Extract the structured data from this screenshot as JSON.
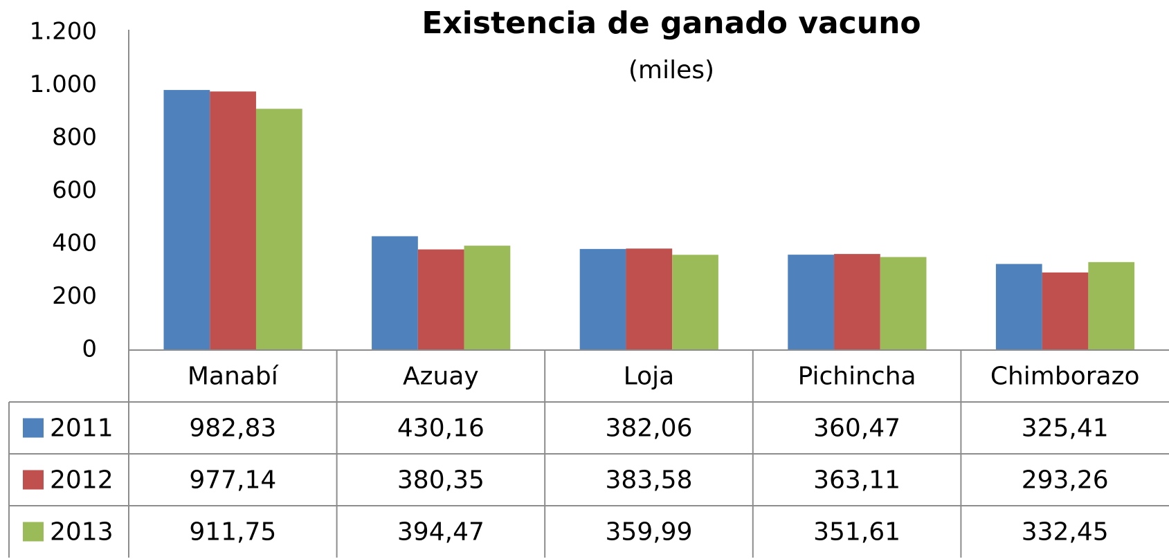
{
  "chart_data": {
    "type": "bar",
    "title": "Existencia de ganado vacuno",
    "subtitle": "(miles)",
    "categories": [
      "Manabí",
      "Azuay",
      "Loja",
      "Pichincha",
      "Chimborazo"
    ],
    "series": [
      {
        "name": "2011",
        "color": "#4f81bd",
        "values": [
          982.83,
          430.16,
          382.06,
          360.47,
          325.41
        ],
        "value_labels": [
          "982,83",
          "430,16",
          "382,06",
          "360,47",
          "325,41"
        ]
      },
      {
        "name": "2012",
        "color": "#c0504d",
        "values": [
          977.14,
          380.35,
          383.58,
          363.11,
          293.26
        ],
        "value_labels": [
          "977,14",
          "380,35",
          "383,58",
          "363,11",
          "293,26"
        ]
      },
      {
        "name": "2013",
        "color": "#9bbb59",
        "values": [
          911.75,
          394.47,
          359.99,
          351.61,
          332.45
        ],
        "value_labels": [
          "911,75",
          "394,47",
          "359,99",
          "351,61",
          "332,45"
        ]
      }
    ],
    "ylim": [
      0,
      1200
    ],
    "yticks": [
      0,
      200,
      400,
      600,
      800,
      {
        "value": 1000,
        "label": "1.000"
      },
      {
        "value": 1200,
        "label": "1.200"
      }
    ]
  }
}
